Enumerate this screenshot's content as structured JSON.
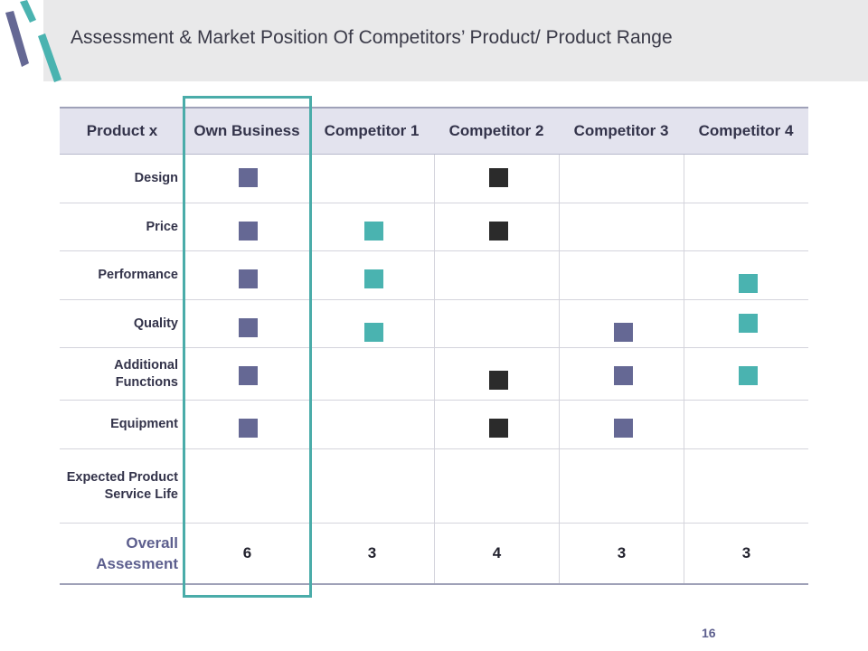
{
  "slide": {
    "title": "Assessment & Market Position Of Competitors’ Product/ Product Range",
    "page_number": "16"
  },
  "colors": {
    "purple": "#656894",
    "teal": "#4ab3b0",
    "black": "#2b2b2b",
    "header_bg": "#e3e3ee",
    "highlight_border": "#4aaca9"
  },
  "table": {
    "headers": [
      "Product x",
      "Own Business",
      "Competitor 1",
      "Competitor 2",
      "Competitor 3",
      "Competitor 4"
    ],
    "rows": [
      {
        "label": "Design",
        "marks": [
          "purple",
          "",
          "black",
          "",
          ""
        ]
      },
      {
        "label": "Price",
        "marks": [
          "purple",
          "teal",
          "black",
          "",
          ""
        ]
      },
      {
        "label": "Performance",
        "marks": [
          "purple",
          "teal",
          "",
          "",
          "teal"
        ]
      },
      {
        "label": "Quality",
        "marks": [
          "purple",
          "teal",
          "",
          "purple",
          "teal"
        ]
      },
      {
        "label": "Additional Functions",
        "marks": [
          "purple",
          "",
          "black",
          "purple",
          "teal"
        ]
      },
      {
        "label": "Equipment",
        "marks": [
          "purple",
          "",
          "black",
          "purple",
          ""
        ]
      },
      {
        "label": "Expected Product Service Life",
        "marks": [
          "",
          "",
          "",
          "",
          ""
        ]
      }
    ],
    "overall": {
      "label": "Overall Assesment",
      "scores": [
        "6",
        "3",
        "4",
        "3",
        "3"
      ]
    }
  }
}
